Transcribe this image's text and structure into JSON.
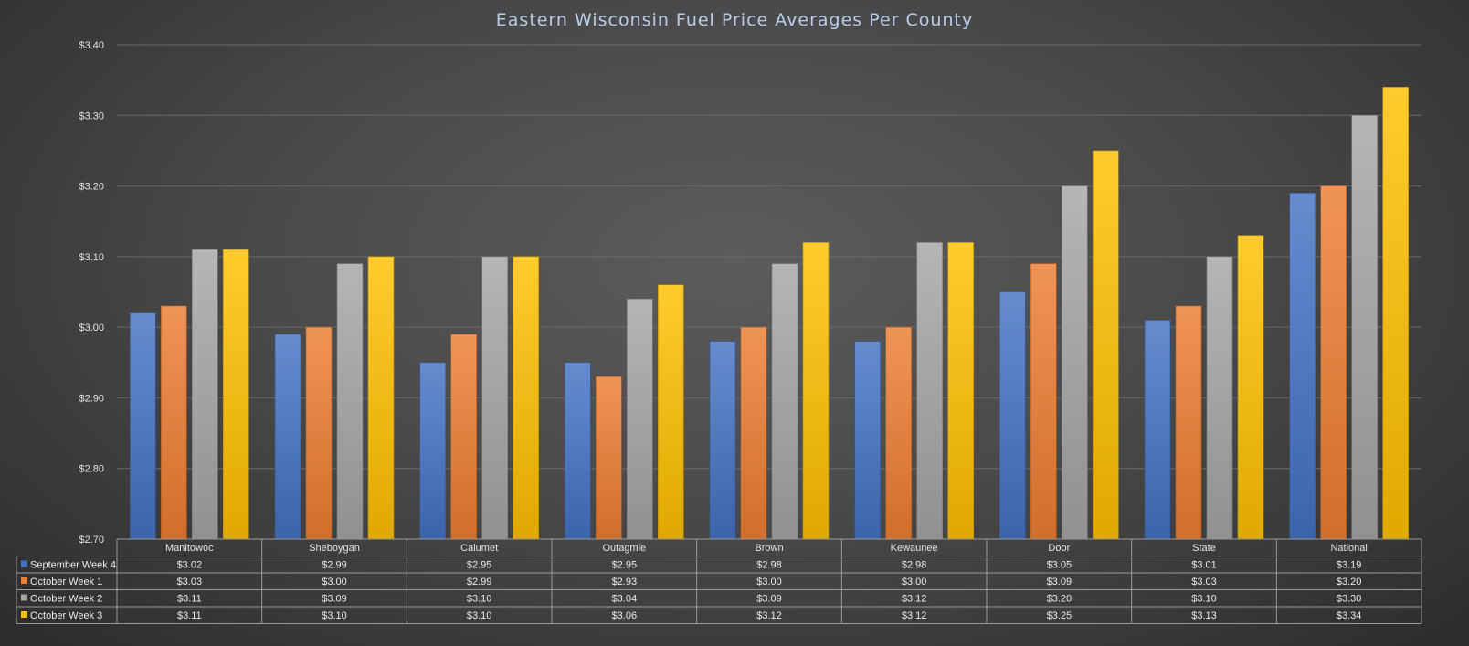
{
  "chart_data": {
    "type": "bar",
    "title": "Eastern Wisconsin Fuel Price Averages Per County",
    "categories": [
      "Manitowoc",
      "Sheboygan",
      "Calumet",
      "Outagmie",
      "Brown",
      "Kewaunee",
      "Door",
      "State",
      "National"
    ],
    "ylim": [
      2.7,
      3.4
    ],
    "yticks": [
      "$2.70",
      "$2.80",
      "$2.90",
      "$3.00",
      "$3.10",
      "$3.20",
      "$3.30",
      "$3.40"
    ],
    "grid": true,
    "legend": "data-table",
    "series": [
      {
        "name": "September Week 4",
        "color": "#4472c4",
        "values": [
          3.02,
          2.99,
          2.95,
          2.95,
          2.98,
          2.98,
          3.05,
          3.01,
          3.19
        ],
        "labels": [
          "$3.02",
          "$2.99",
          "$2.95",
          "$2.95",
          "$2.98",
          "$2.98",
          "$3.05",
          "$3.01",
          "$3.19"
        ]
      },
      {
        "name": "October Week 1",
        "color": "#ed7d31",
        "values": [
          3.03,
          3.0,
          2.99,
          2.93,
          3.0,
          3.0,
          3.09,
          3.03,
          3.2
        ],
        "labels": [
          "$3.03",
          "$3.00",
          "$2.99",
          "$2.93",
          "$3.00",
          "$3.00",
          "$3.09",
          "$3.03",
          "$3.20"
        ]
      },
      {
        "name": "October Week 2",
        "color": "#a5a5a5",
        "values": [
          3.11,
          3.09,
          3.1,
          3.04,
          3.09,
          3.12,
          3.2,
          3.1,
          3.3
        ],
        "labels": [
          "$3.11",
          "$3.09",
          "$3.10",
          "$3.04",
          "$3.09",
          "$3.12",
          "$3.20",
          "$3.10",
          "$3.30"
        ]
      },
      {
        "name": "October Week 3",
        "color": "#ffc000",
        "values": [
          3.11,
          3.1,
          3.1,
          3.06,
          3.12,
          3.12,
          3.25,
          3.13,
          3.34
        ],
        "labels": [
          "$3.11",
          "$3.10",
          "$3.10",
          "$3.06",
          "$3.12",
          "$3.12",
          "$3.25",
          "$3.13",
          "$3.34"
        ]
      }
    ]
  }
}
